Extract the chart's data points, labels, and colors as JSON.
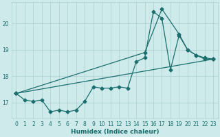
{
  "xlabel": "Humidex (Indice chaleur)",
  "ylabel": "",
  "bg_color": "#ceeaea",
  "grid_color": "#aacfcf",
  "line_color": "#1a6e6e",
  "xlim": [
    -0.5,
    23.5
  ],
  "ylim": [
    16.4,
    20.8
  ],
  "yticks": [
    17,
    18,
    19,
    20
  ],
  "xticks": [
    0,
    1,
    2,
    3,
    4,
    5,
    6,
    7,
    8,
    9,
    10,
    11,
    12,
    13,
    14,
    15,
    16,
    17,
    18,
    19,
    20,
    21,
    22,
    23
  ],
  "series1_x": [
    0,
    1,
    2,
    3,
    4,
    5,
    6,
    7,
    8,
    9,
    10,
    11,
    12,
    13,
    14,
    15,
    16,
    17,
    18,
    19,
    20,
    21,
    22,
    23
  ],
  "series1_y": [
    17.35,
    17.1,
    17.05,
    17.1,
    16.65,
    16.72,
    16.65,
    16.72,
    17.05,
    17.6,
    17.55,
    17.55,
    17.6,
    17.55,
    18.55,
    18.7,
    20.45,
    20.2,
    18.25,
    19.55,
    19.0,
    18.8,
    18.65,
    18.65
  ],
  "series2_x": [
    0,
    23
  ],
  "series2_y": [
    17.35,
    18.65
  ],
  "series3_x": [
    0,
    15,
    17,
    19,
    20,
    21,
    22,
    23
  ],
  "series3_y": [
    17.35,
    18.9,
    20.55,
    19.6,
    19.0,
    18.8,
    18.7,
    18.65
  ],
  "marker": "D",
  "marker_size": 2.5,
  "line_width": 0.9,
  "axis_fontsize": 6.5,
  "tick_fontsize": 5.5
}
